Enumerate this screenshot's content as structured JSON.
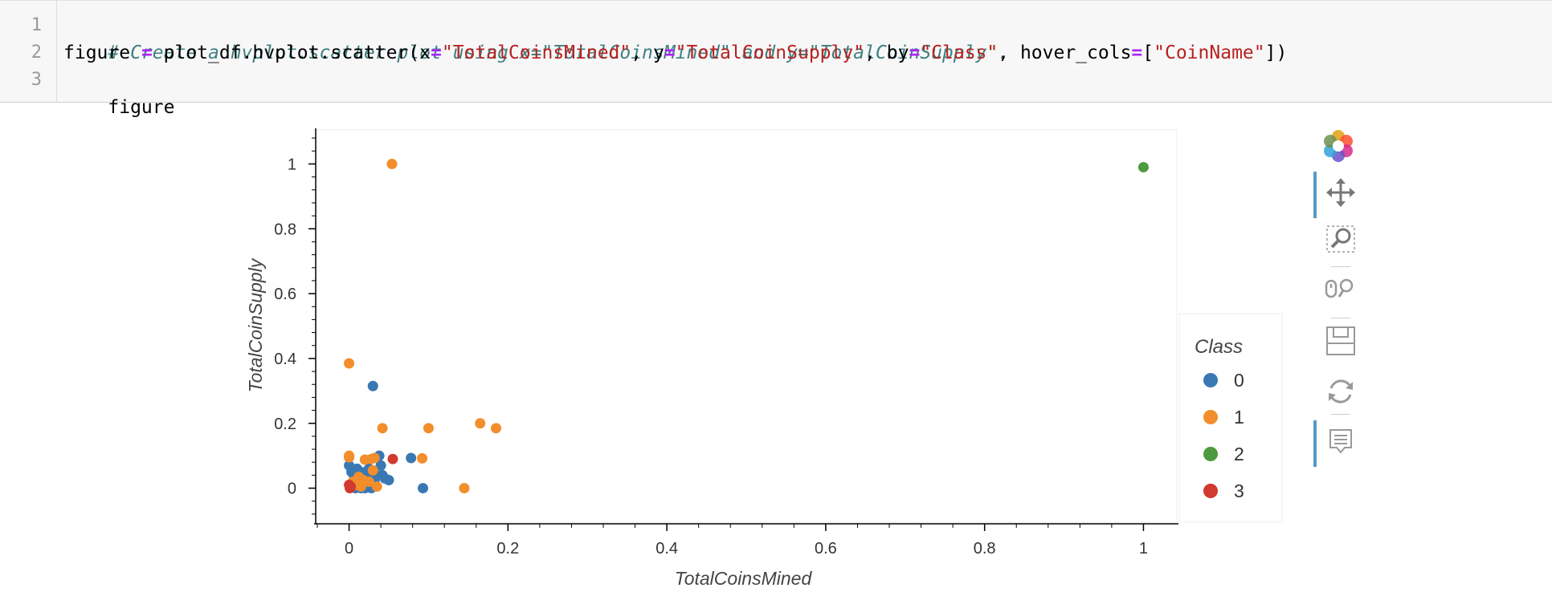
{
  "code": {
    "line_numbers": [
      "1",
      "2",
      "3"
    ],
    "line1_comment": "# Create a hvplot.scatter plot using x=\"TotalCoinsMined\" and y=\"TotalCoinSupply\".",
    "line2": {
      "t1": "figure ",
      "op1": "=",
      "t2": " plot_df.hvplot.scatter(x",
      "op2": "=",
      "s1": "\"TotalCoinsMined\"",
      "t3": ", y",
      "op3": "=",
      "s2": "\"TotalCoinSupply\"",
      "t4": ", by",
      "op4": "=",
      "s3": "\"Class\"",
      "t5": ", hover_cols",
      "op5": "=",
      "t6": "[",
      "s4": "\"CoinName\"",
      "t7": "])"
    },
    "line3": "figure"
  },
  "toolbar": {
    "tools": [
      "bokeh-logo-icon",
      "pan-icon",
      "box-zoom-icon",
      "wheel-zoom-icon",
      "save-icon",
      "reset-icon",
      "hover-icon"
    ]
  },
  "colors": {
    "class0": "#30a2da",
    "class1": "#fc4f30",
    "class2": "#e5ae38",
    "class3": "#6d904f"
  },
  "chart_data": {
    "type": "scatter",
    "xlabel": "TotalCoinsMined",
    "ylabel": "TotalCoinSupply",
    "xlim": [
      -0.04,
      1.04
    ],
    "ylim": [
      -0.1,
      1.1
    ],
    "x_ticks": [
      "0",
      "0.2",
      "0.4",
      "0.6",
      "0.8",
      "1"
    ],
    "x_tick_values": [
      0,
      0.2,
      0.4,
      0.6,
      0.8,
      1
    ],
    "y_ticks": [
      "0",
      "0.2",
      "0.4",
      "0.6",
      "0.8",
      "1"
    ],
    "y_tick_values": [
      0,
      0.2,
      0.4,
      0.6,
      0.8,
      1
    ],
    "legend_title": "Class",
    "legend_position": "right",
    "grid": false,
    "series": [
      {
        "name": "0",
        "color": "#3a78b4",
        "points": [
          [
            0.0,
            0.07
          ],
          [
            0.003,
            0.05
          ],
          [
            0.006,
            0.04
          ],
          [
            0.01,
            0.06
          ],
          [
            0.012,
            0.03
          ],
          [
            0.015,
            0.05
          ],
          [
            0.018,
            0.02
          ],
          [
            0.02,
            0.04
          ],
          [
            0.022,
            0.01
          ],
          [
            0.025,
            0.03
          ],
          [
            0.028,
            0.0
          ],
          [
            0.03,
            0.05
          ],
          [
            0.032,
            0.02
          ],
          [
            0.035,
            0.04
          ],
          [
            0.038,
            0.1
          ],
          [
            0.04,
            0.07
          ],
          [
            0.042,
            0.04
          ],
          [
            0.045,
            0.03
          ],
          [
            0.05,
            0.025
          ],
          [
            0.008,
            0.0
          ],
          [
            0.015,
            0.0
          ],
          [
            0.02,
            0.0
          ],
          [
            0.03,
            0.315
          ],
          [
            0.078,
            0.093
          ],
          [
            0.093,
            0.0
          ],
          [
            0.005,
            0.02
          ],
          [
            0.012,
            0.015
          ],
          [
            0.025,
            0.06
          ]
        ]
      },
      {
        "name": "1",
        "color": "#f28e2b",
        "points": [
          [
            0.054,
            1.0
          ],
          [
            0.0,
            0.385
          ],
          [
            0.0,
            0.1
          ],
          [
            0.0,
            0.095
          ],
          [
            0.005,
            0.02
          ],
          [
            0.012,
            0.035
          ],
          [
            0.018,
            0.025
          ],
          [
            0.02,
            0.088
          ],
          [
            0.028,
            0.09
          ],
          [
            0.032,
            0.093
          ],
          [
            0.035,
            0.005
          ],
          [
            0.015,
            0.005
          ],
          [
            0.042,
            0.185
          ],
          [
            0.1,
            0.185
          ],
          [
            0.165,
            0.2
          ],
          [
            0.185,
            0.185
          ],
          [
            0.092,
            0.092
          ],
          [
            0.145,
            0.0
          ],
          [
            0.025,
            0.02
          ],
          [
            0.01,
            0.01
          ],
          [
            0.03,
            0.055
          ]
        ]
      },
      {
        "name": "2",
        "color": "#4e9a3e",
        "points": [
          [
            1.0,
            0.99
          ]
        ]
      },
      {
        "name": "3",
        "color": "#d03a2f",
        "points": [
          [
            0.055,
            0.09
          ],
          [
            0.0,
            0.01
          ],
          [
            0.002,
            0.005
          ],
          [
            0.001,
            0.0
          ]
        ]
      }
    ]
  }
}
